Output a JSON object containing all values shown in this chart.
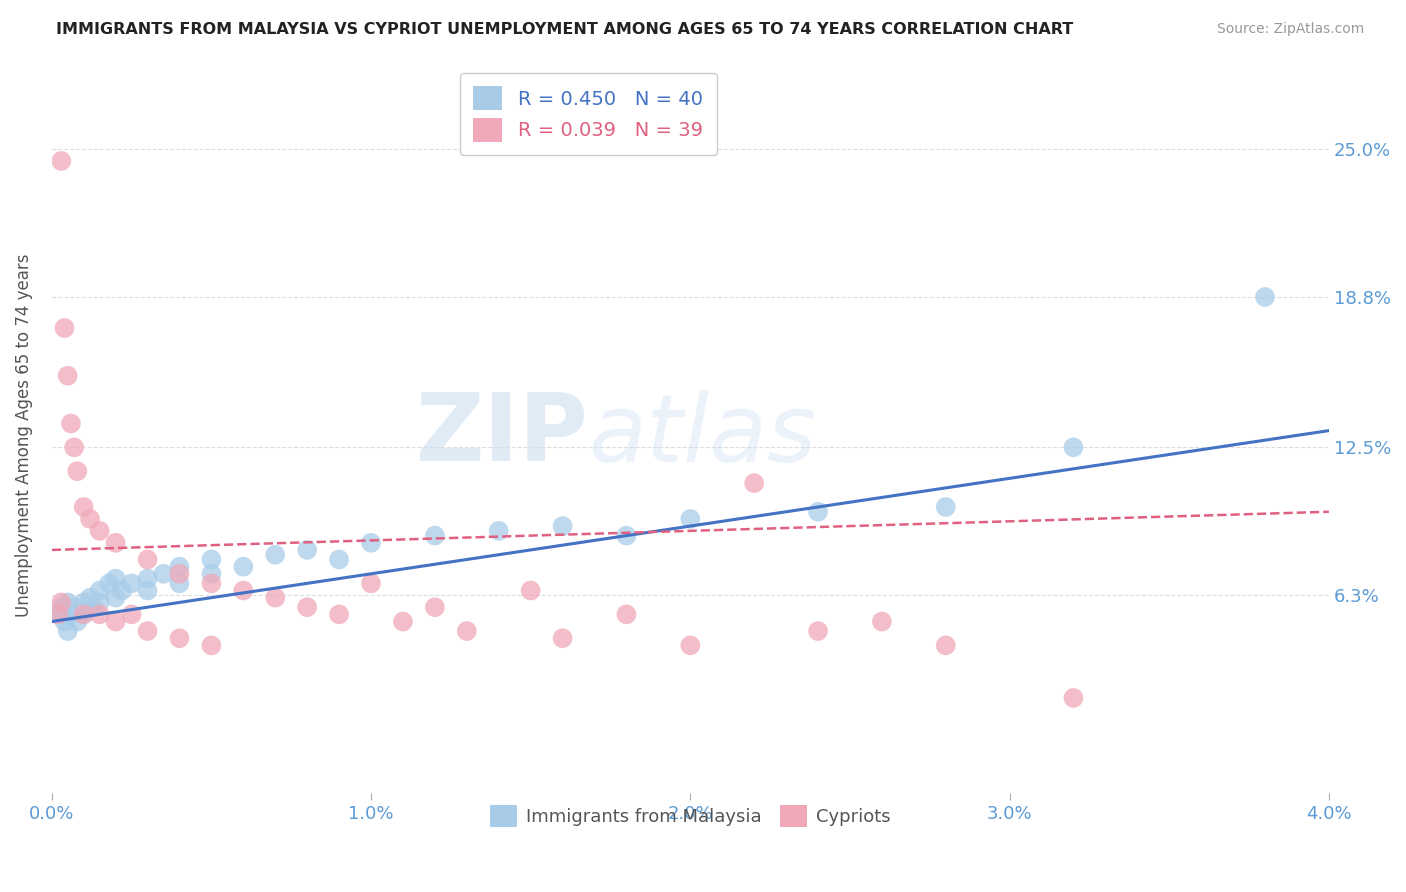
{
  "title": "IMMIGRANTS FROM MALAYSIA VS CYPRIOT UNEMPLOYMENT AMONG AGES 65 TO 74 YEARS CORRELATION CHART",
  "source": "Source: ZipAtlas.com",
  "ylabel": "Unemployment Among Ages 65 to 74 years",
  "xlim": [
    0.0,
    0.04
  ],
  "ylim": [
    -0.02,
    0.28
  ],
  "yticks": [
    0.063,
    0.125,
    0.188,
    0.25
  ],
  "ytick_labels": [
    "6.3%",
    "12.5%",
    "18.8%",
    "25.0%"
  ],
  "xticks": [
    0.0,
    0.01,
    0.02,
    0.03,
    0.04
  ],
  "xtick_labels": [
    "0.0%",
    "1.0%",
    "2.0%",
    "3.0%",
    "4.0%"
  ],
  "color_blue": "#A8CCE8",
  "color_pink": "#F0A8B8",
  "color_blue_line": "#4472C4",
  "color_pink_line": "#E06080",
  "watermark_zip": "ZIP",
  "watermark_atlas": "atlas",
  "grid_color": "#DDDDDD",
  "background_color": "#FFFFFF",
  "blue_scatter_x": [
    0.0002,
    0.0003,
    0.0004,
    0.0005,
    0.0005,
    0.0006,
    0.0007,
    0.0008,
    0.001,
    0.001,
    0.0012,
    0.0013,
    0.0015,
    0.0015,
    0.0018,
    0.002,
    0.002,
    0.0022,
    0.0025,
    0.003,
    0.003,
    0.0035,
    0.004,
    0.004,
    0.005,
    0.005,
    0.006,
    0.007,
    0.008,
    0.009,
    0.01,
    0.012,
    0.014,
    0.016,
    0.018,
    0.02,
    0.024,
    0.028,
    0.032,
    0.038
  ],
  "blue_scatter_y": [
    0.055,
    0.058,
    0.052,
    0.06,
    0.048,
    0.055,
    0.058,
    0.052,
    0.06,
    0.055,
    0.062,
    0.058,
    0.065,
    0.06,
    0.068,
    0.062,
    0.07,
    0.065,
    0.068,
    0.07,
    0.065,
    0.072,
    0.068,
    0.075,
    0.072,
    0.078,
    0.075,
    0.08,
    0.082,
    0.078,
    0.085,
    0.088,
    0.09,
    0.092,
    0.088,
    0.095,
    0.098,
    0.1,
    0.125,
    0.188
  ],
  "pink_scatter_x": [
    0.0002,
    0.0003,
    0.0003,
    0.0004,
    0.0005,
    0.0006,
    0.0007,
    0.0008,
    0.001,
    0.001,
    0.0012,
    0.0015,
    0.0015,
    0.002,
    0.002,
    0.0025,
    0.003,
    0.003,
    0.004,
    0.004,
    0.005,
    0.005,
    0.006,
    0.007,
    0.008,
    0.009,
    0.01,
    0.011,
    0.012,
    0.013,
    0.015,
    0.016,
    0.018,
    0.02,
    0.022,
    0.024,
    0.026,
    0.028,
    0.032
  ],
  "pink_scatter_y": [
    0.055,
    0.245,
    0.06,
    0.175,
    0.155,
    0.135,
    0.125,
    0.115,
    0.1,
    0.055,
    0.095,
    0.09,
    0.055,
    0.085,
    0.052,
    0.055,
    0.078,
    0.048,
    0.072,
    0.045,
    0.068,
    0.042,
    0.065,
    0.062,
    0.058,
    0.055,
    0.068,
    0.052,
    0.058,
    0.048,
    0.065,
    0.045,
    0.055,
    0.042,
    0.11,
    0.048,
    0.052,
    0.042,
    0.02
  ],
  "blue_trend_x": [
    0.0,
    0.04
  ],
  "blue_trend_y": [
    0.052,
    0.132
  ],
  "pink_trend_x": [
    0.0,
    0.04
  ],
  "pink_trend_y": [
    0.082,
    0.098
  ]
}
